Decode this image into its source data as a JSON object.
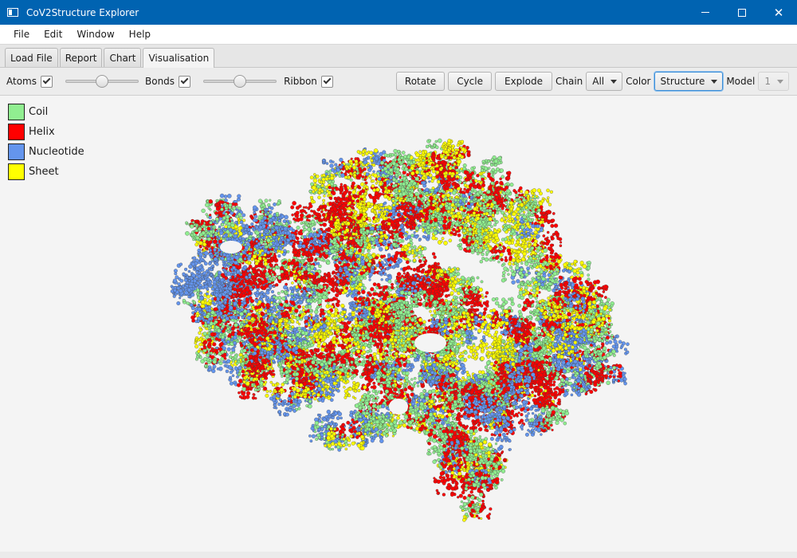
{
  "window": {
    "title": "CoV2Structure Explorer"
  },
  "menu": [
    "File",
    "Edit",
    "Window",
    "Help"
  ],
  "tabs": [
    "Load File",
    "Report",
    "Chart",
    "Visualisation"
  ],
  "active_tab": "Visualisation",
  "toolbar": {
    "atoms_label": "Atoms",
    "atoms_checked": true,
    "atoms_slider": 0.5,
    "bonds_label": "Bonds",
    "bonds_checked": true,
    "bonds_slider": 0.5,
    "ribbon_label": "Ribbon",
    "ribbon_checked": true,
    "rotate_label": "Rotate",
    "cycle_label": "Cycle",
    "explode_label": "Explode",
    "chain_label": "Chain",
    "chain_value": "All",
    "color_label": "Color",
    "color_value": "Structure",
    "model_label": "Model",
    "model_value": "1"
  },
  "legend": [
    {
      "label": "Coil",
      "color": "#90ee90"
    },
    {
      "label": "Helix",
      "color": "#ff0000"
    },
    {
      "label": "Nucleotide",
      "color": "#6495ed"
    },
    {
      "label": "Sheet",
      "color": "#ffff00"
    }
  ],
  "colors": {
    "titlebar": "#0063b1",
    "focus": "#3c8ed8"
  }
}
